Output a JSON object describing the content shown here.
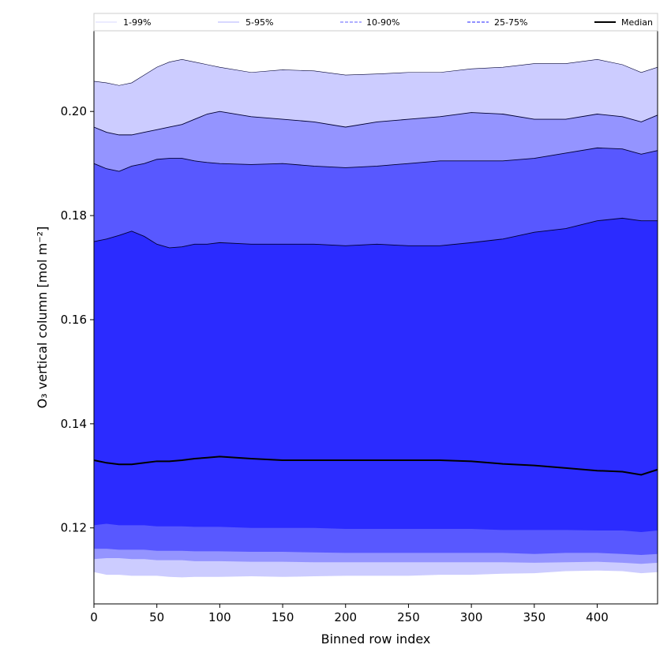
{
  "chart_data": {
    "type": "area",
    "title": "",
    "xlabel": "Binned row index",
    "ylabel": "O₃ vertical column [mol m⁻²]",
    "xlim": [
      0,
      448
    ],
    "ylim": [
      0.1054,
      0.2155
    ],
    "xticks": [
      0,
      50,
      100,
      150,
      200,
      250,
      300,
      350,
      400
    ],
    "yticks": [
      0.12,
      0.14,
      0.16,
      0.18,
      0.2
    ],
    "ytick_labels": [
      "0.12",
      "0.14",
      "0.16",
      "0.18",
      "0.20"
    ],
    "grid": false,
    "legend_position": "top",
    "legend": [
      {
        "label": "1-99%",
        "color": "#ccccff",
        "style": "solid-thin"
      },
      {
        "label": "5-95%",
        "color": "#9999ff",
        "style": "solid-thin"
      },
      {
        "label": "10-90%",
        "color": "#8080ff",
        "style": "dashed"
      },
      {
        "label": "25-75%",
        "color": "#4d4dff",
        "style": "dashed"
      },
      {
        "label": "Median",
        "color": "#000000",
        "style": "solid-thick"
      }
    ],
    "colors": {
      "band_1_99": "#ccccff",
      "band_5_95": "#9494ff",
      "band_10_90": "#5858ff",
      "band_25_75": "#2b2bff",
      "median": "#000000"
    },
    "x": [
      0,
      10,
      20,
      30,
      40,
      50,
      60,
      70,
      80,
      90,
      100,
      125,
      150,
      175,
      200,
      225,
      250,
      275,
      300,
      325,
      350,
      375,
      400,
      420,
      435,
      448
    ],
    "series": [
      {
        "name": "",
        "values": [
          0.2058,
          0.2055,
          0.205,
          0.2055,
          0.207,
          0.2085,
          0.2095,
          0.21,
          0.2095,
          0.209,
          0.2085,
          0.2075,
          0.208,
          0.2078,
          0.207,
          0.2072,
          0.2075,
          0.2075,
          0.2082,
          0.2085,
          0.2092,
          0.2092,
          0.21,
          0.209,
          0.2075,
          0.2085
        ]
      },
      {
        "name": "",
        "values": [
          0.197,
          0.196,
          0.1955,
          0.1955,
          0.196,
          0.1965,
          0.197,
          0.1975,
          0.1985,
          0.1995,
          0.2,
          0.199,
          0.1985,
          0.198,
          0.197,
          0.198,
          0.1985,
          0.199,
          0.1998,
          0.1995,
          0.1985,
          0.1985,
          0.1995,
          0.199,
          0.198,
          0.1993
        ]
      },
      {
        "name": "",
        "values": [
          0.19,
          0.189,
          0.1885,
          0.1895,
          0.19,
          0.1908,
          0.191,
          0.191,
          0.1905,
          0.1902,
          0.19,
          0.1898,
          0.19,
          0.1895,
          0.1892,
          0.1895,
          0.19,
          0.1905,
          0.1905,
          0.1905,
          0.191,
          0.192,
          0.193,
          0.1928,
          0.1918,
          0.1925
        ]
      },
      {
        "name": "",
        "values": [
          0.175,
          0.1755,
          0.1762,
          0.177,
          0.176,
          0.1745,
          0.1738,
          0.174,
          0.1745,
          0.1745,
          0.1748,
          0.1745,
          0.1745,
          0.1745,
          0.1742,
          0.1745,
          0.1742,
          0.1742,
          0.1748,
          0.1755,
          0.1768,
          0.1775,
          0.179,
          0.1795,
          0.179,
          0.179
        ]
      },
      {
        "name": "",
        "values": [
          0.133,
          0.1325,
          0.1322,
          0.1322,
          0.1325,
          0.1328,
          0.1328,
          0.133,
          0.1333,
          0.1335,
          0.1337,
          0.1333,
          0.133,
          0.133,
          0.133,
          0.133,
          0.133,
          0.133,
          0.1328,
          0.1323,
          0.132,
          0.1315,
          0.131,
          0.1308,
          0.1302,
          0.1312
        ]
      },
      {
        "name": "",
        "values": [
          0.1205,
          0.1208,
          0.1205,
          0.1205,
          0.1205,
          0.1203,
          0.1203,
          0.1203,
          0.1202,
          0.1202,
          0.1202,
          0.12,
          0.12,
          0.12,
          0.1198,
          0.1198,
          0.1198,
          0.1198,
          0.1198,
          0.1196,
          0.1196,
          0.1196,
          0.1195,
          0.1195,
          0.1192,
          0.1195
        ]
      },
      {
        "name": "",
        "values": [
          0.116,
          0.116,
          0.1158,
          0.1158,
          0.1158,
          0.1156,
          0.1156,
          0.1156,
          0.1155,
          0.1155,
          0.1155,
          0.1154,
          0.1154,
          0.1153,
          0.1152,
          0.1152,
          0.1152,
          0.1152,
          0.1152,
          0.1152,
          0.115,
          0.1152,
          0.1152,
          0.115,
          0.1148,
          0.115
        ]
      },
      {
        "name": "",
        "values": [
          0.114,
          0.1142,
          0.1142,
          0.114,
          0.114,
          0.1138,
          0.1138,
          0.1138,
          0.1136,
          0.1136,
          0.1136,
          0.1135,
          0.1135,
          0.1134,
          0.1134,
          0.1134,
          0.1134,
          0.1134,
          0.1134,
          0.1134,
          0.1133,
          0.1134,
          0.1135,
          0.1133,
          0.1131,
          0.1133
        ]
      },
      {
        "name": "",
        "values": [
          0.1115,
          0.111,
          0.111,
          0.1108,
          0.1108,
          0.1108,
          0.1106,
          0.1105,
          0.1106,
          0.1106,
          0.1106,
          0.1107,
          0.1106,
          0.1107,
          0.1108,
          0.1108,
          0.1108,
          0.111,
          0.111,
          0.1112,
          0.1113,
          0.1117,
          0.1118,
          0.1117,
          0.1113,
          0.1115
        ]
      }
    ]
  }
}
